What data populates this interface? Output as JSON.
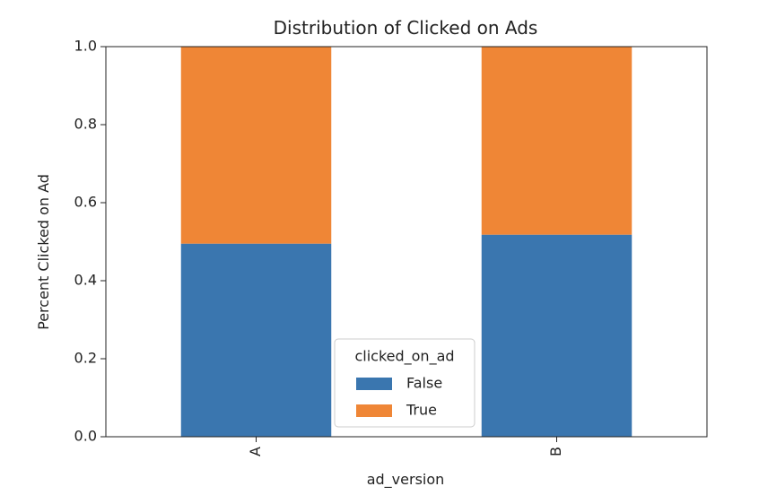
{
  "chart_data": {
    "type": "bar",
    "stacked": true,
    "title": "Distribution of Clicked on Ads",
    "xlabel": "ad_version",
    "ylabel": "Percent Clicked on Ad",
    "categories": [
      "A",
      "B"
    ],
    "series": [
      {
        "name": "False",
        "values": [
          0.495,
          0.518
        ],
        "color": "#3a76af"
      },
      {
        "name": "True",
        "values": [
          0.505,
          0.482
        ],
        "color": "#ef8636"
      }
    ],
    "ylim": [
      0,
      1.0
    ],
    "yticks": [
      0.0,
      0.2,
      0.4,
      0.6,
      0.8,
      1.0
    ],
    "ytick_labels": [
      "0.0",
      "0.2",
      "0.4",
      "0.6",
      "0.8",
      "1.0"
    ],
    "grid": false,
    "legend": {
      "title": "clicked_on_ad",
      "placement": "lower-center",
      "entries": [
        "False",
        "True"
      ]
    },
    "xtick_rotation": "vertical"
  }
}
